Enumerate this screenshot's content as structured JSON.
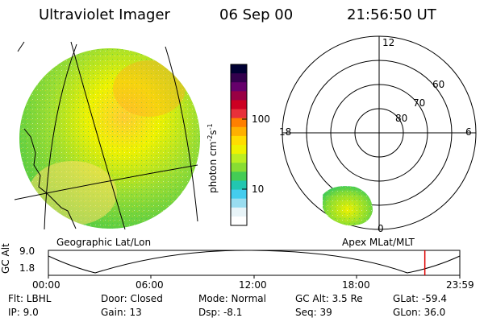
{
  "header": {
    "instrument": "Ultraviolet Imager",
    "date": "06 Sep 00",
    "time": "21:56:50 UT"
  },
  "colorbar": {
    "unit_label": "photon cm",
    "unit_sup1": "-2",
    "unit_mid": "s",
    "unit_sup2": "-1",
    "ticks": [
      "100",
      "10"
    ],
    "colors": [
      "#000033",
      "#33004d",
      "#66006b",
      "#990044",
      "#cc0022",
      "#e8303a",
      "#ff7f00",
      "#ffb000",
      "#ffdd00",
      "#eef200",
      "#bbee22",
      "#88dd33",
      "#44cc55",
      "#22c6b0",
      "#44ccee",
      "#99ddf0",
      "#e8f4f8",
      "#ffffff"
    ]
  },
  "geo_map": {
    "label": "Geographic Lat/Lon"
  },
  "polar_plot": {
    "label": "Apex MLat/MLT",
    "mlt_labels": [
      "12",
      "18",
      "6",
      "0"
    ],
    "lat_labels": [
      "60",
      "70",
      "80"
    ]
  },
  "altitude_plot": {
    "ylabel": "GC Alt",
    "yticks": [
      "9.0",
      "1.8"
    ],
    "xticks": [
      "00:00",
      "06:00",
      "12:00",
      "18:00",
      "23:59"
    ],
    "current_time_fraction": 0.915
  },
  "info": {
    "flt": "Flt: LBHL",
    "ip": "IP:  9.0",
    "door": "Door: Closed",
    "gain": "Gain: 13",
    "mode": "Mode: Normal",
    "dsp": "Dsp:   -8.1",
    "gc_alt": "GC Alt: 3.5 Re",
    "seq": "Seq: 39",
    "glat": "GLat: -59.4",
    "glon": "GLon:  36.0"
  }
}
